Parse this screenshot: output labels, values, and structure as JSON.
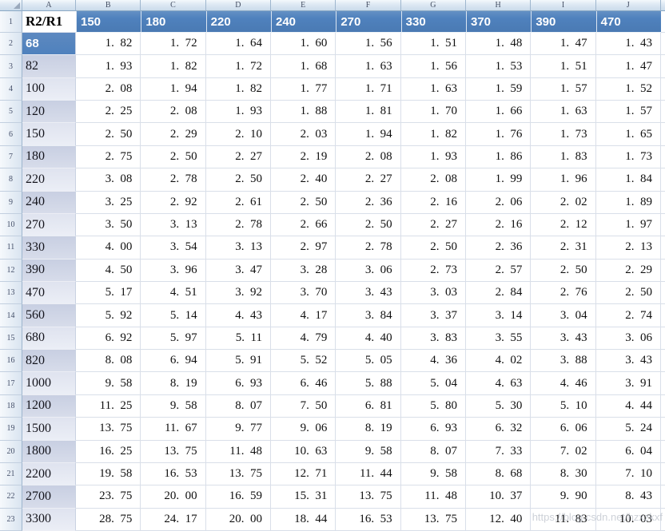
{
  "sheet": {
    "column_letters": [
      "A",
      "B",
      "C",
      "D",
      "E",
      "F",
      "G",
      "H",
      "I",
      "J"
    ],
    "row_numbers": [
      1,
      2,
      3,
      4,
      5,
      6,
      7,
      8,
      9,
      10,
      11,
      12,
      13,
      14,
      15,
      16,
      17,
      18,
      19,
      20,
      21,
      22,
      23
    ],
    "selected_label": "68",
    "banded_dark_labels": [
      "82",
      "120",
      "180",
      "240",
      "330",
      "390",
      "560",
      "820",
      "1200",
      "1800",
      "2700"
    ],
    "watermark": "https://blog.csdn.net/hzxzkxf"
  },
  "colors": {
    "header_blue": "#4f81bd",
    "band_dark": "#cdd3e6",
    "band_light": "#e2e6f1",
    "gridline": "#d9dfe9",
    "strip_blue": "#cadbeb"
  },
  "table": {
    "header_label": "R2/R1",
    "header_values": [
      "150",
      "180",
      "220",
      "240",
      "270",
      "330",
      "370",
      "390",
      "470"
    ],
    "rows": [
      {
        "label": "68",
        "values": [
          "1.82",
          "1.72",
          "1.64",
          "1.60",
          "1.56",
          "1.51",
          "1.48",
          "1.47",
          "1.43"
        ]
      },
      {
        "label": "82",
        "values": [
          "1.93",
          "1.82",
          "1.72",
          "1.68",
          "1.63",
          "1.56",
          "1.53",
          "1.51",
          "1.47"
        ]
      },
      {
        "label": "100",
        "values": [
          "2.08",
          "1.94",
          "1.82",
          "1.77",
          "1.71",
          "1.63",
          "1.59",
          "1.57",
          "1.52"
        ]
      },
      {
        "label": "120",
        "values": [
          "2.25",
          "2.08",
          "1.93",
          "1.88",
          "1.81",
          "1.70",
          "1.66",
          "1.63",
          "1.57"
        ]
      },
      {
        "label": "150",
        "values": [
          "2.50",
          "2.29",
          "2.10",
          "2.03",
          "1.94",
          "1.82",
          "1.76",
          "1.73",
          "1.65"
        ]
      },
      {
        "label": "180",
        "values": [
          "2.75",
          "2.50",
          "2.27",
          "2.19",
          "2.08",
          "1.93",
          "1.86",
          "1.83",
          "1.73"
        ]
      },
      {
        "label": "220",
        "values": [
          "3.08",
          "2.78",
          "2.50",
          "2.40",
          "2.27",
          "2.08",
          "1.99",
          "1.96",
          "1.84"
        ]
      },
      {
        "label": "240",
        "values": [
          "3.25",
          "2.92",
          "2.61",
          "2.50",
          "2.36",
          "2.16",
          "2.06",
          "2.02",
          "1.89"
        ]
      },
      {
        "label": "270",
        "values": [
          "3.50",
          "3.13",
          "2.78",
          "2.66",
          "2.50",
          "2.27",
          "2.16",
          "2.12",
          "1.97"
        ]
      },
      {
        "label": "330",
        "values": [
          "4.00",
          "3.54",
          "3.13",
          "2.97",
          "2.78",
          "2.50",
          "2.36",
          "2.31",
          "2.13"
        ]
      },
      {
        "label": "390",
        "values": [
          "4.50",
          "3.96",
          "3.47",
          "3.28",
          "3.06",
          "2.73",
          "2.57",
          "2.50",
          "2.29"
        ]
      },
      {
        "label": "470",
        "values": [
          "5.17",
          "4.51",
          "3.92",
          "3.70",
          "3.43",
          "3.03",
          "2.84",
          "2.76",
          "2.50"
        ]
      },
      {
        "label": "560",
        "values": [
          "5.92",
          "5.14",
          "4.43",
          "4.17",
          "3.84",
          "3.37",
          "3.14",
          "3.04",
          "2.74"
        ]
      },
      {
        "label": "680",
        "values": [
          "6.92",
          "5.97",
          "5.11",
          "4.79",
          "4.40",
          "3.83",
          "3.55",
          "3.43",
          "3.06"
        ]
      },
      {
        "label": "820",
        "values": [
          "8.08",
          "6.94",
          "5.91",
          "5.52",
          "5.05",
          "4.36",
          "4.02",
          "3.88",
          "3.43"
        ]
      },
      {
        "label": "1000",
        "values": [
          "9.58",
          "8.19",
          "6.93",
          "6.46",
          "5.88",
          "5.04",
          "4.63",
          "4.46",
          "3.91"
        ]
      },
      {
        "label": "1200",
        "values": [
          "11.25",
          "9.58",
          "8.07",
          "7.50",
          "6.81",
          "5.80",
          "5.30",
          "5.10",
          "4.44"
        ]
      },
      {
        "label": "1500",
        "values": [
          "13.75",
          "11.67",
          "9.77",
          "9.06",
          "8.19",
          "6.93",
          "6.32",
          "6.06",
          "5.24"
        ]
      },
      {
        "label": "1800",
        "values": [
          "16.25",
          "13.75",
          "11.48",
          "10.63",
          "9.58",
          "8.07",
          "7.33",
          "7.02",
          "6.04"
        ]
      },
      {
        "label": "2200",
        "values": [
          "19.58",
          "16.53",
          "13.75",
          "12.71",
          "11.44",
          "9.58",
          "8.68",
          "8.30",
          "7.10"
        ]
      },
      {
        "label": "2700",
        "values": [
          "23.75",
          "20.00",
          "16.59",
          "15.31",
          "13.75",
          "11.48",
          "10.37",
          "9.90",
          "8.43"
        ]
      },
      {
        "label": "3300",
        "values": [
          "28.75",
          "24.17",
          "20.00",
          "18.44",
          "16.53",
          "13.75",
          "12.40",
          "11.83",
          "10.03"
        ]
      }
    ]
  }
}
